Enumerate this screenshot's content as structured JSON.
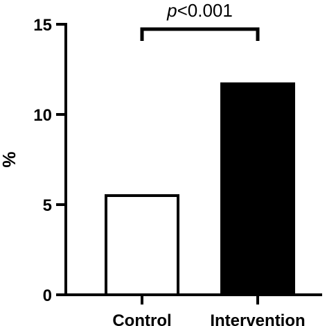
{
  "chart_data": {
    "type": "bar",
    "categories": [
      "Control",
      "Intervention"
    ],
    "values": [
      5.5,
      11.7
    ],
    "fills": [
      "#ffffff",
      "#000000"
    ],
    "ylabel": "%",
    "ylim": [
      0,
      15
    ],
    "yticks": [
      0,
      5,
      10,
      15
    ],
    "grid": false,
    "annotation": {
      "text_italic": "p",
      "text_rest": "<0.001",
      "between": [
        0,
        1
      ]
    }
  }
}
